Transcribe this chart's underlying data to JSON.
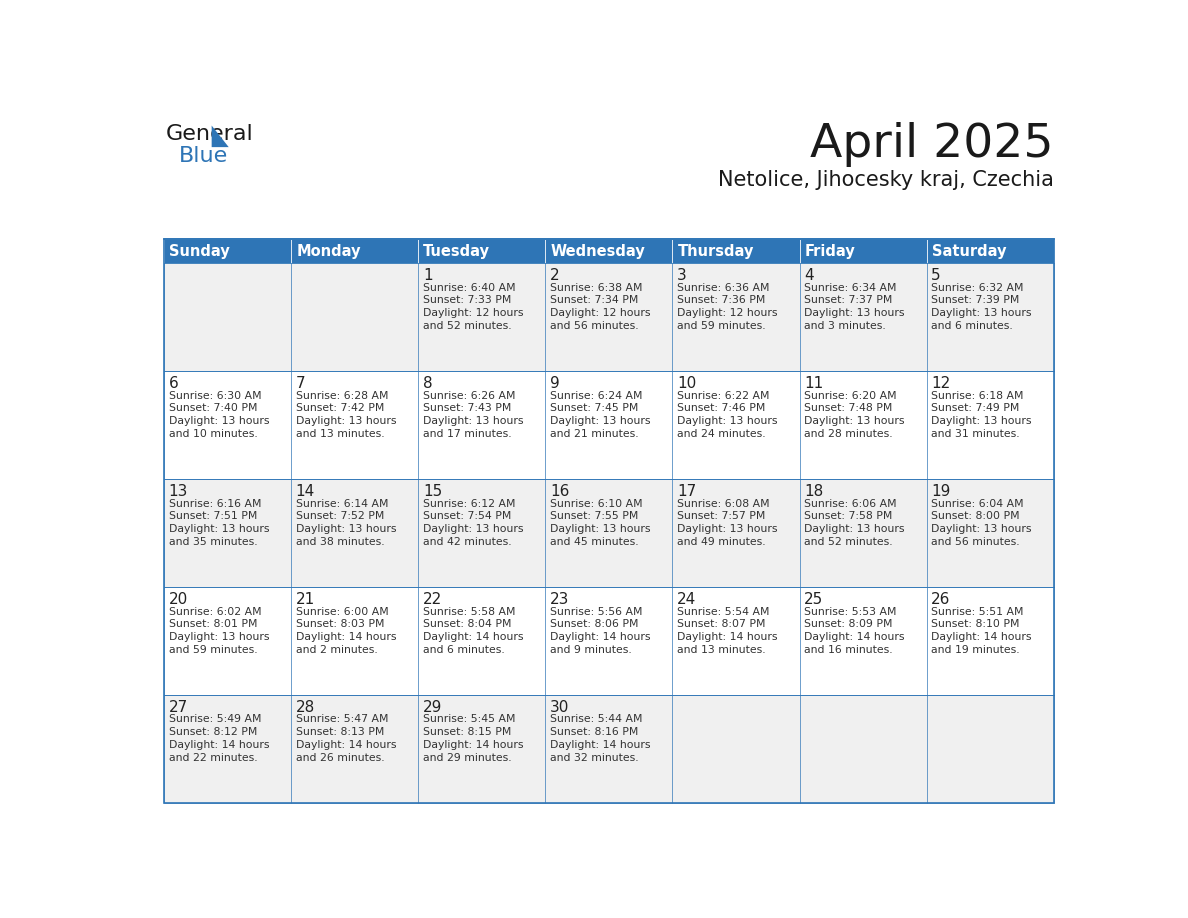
{
  "title": "April 2025",
  "subtitle": "Netolice, Jihocesky kraj, Czechia",
  "header_bg": "#2E75B6",
  "header_text_color": "#FFFFFF",
  "border_color": "#2E75B6",
  "text_color": "#333333",
  "days_of_week": [
    "Sunday",
    "Monday",
    "Tuesday",
    "Wednesday",
    "Thursday",
    "Friday",
    "Saturday"
  ],
  "weeks": [
    [
      {
        "day": "",
        "info": ""
      },
      {
        "day": "",
        "info": ""
      },
      {
        "day": "1",
        "info": "Sunrise: 6:40 AM\nSunset: 7:33 PM\nDaylight: 12 hours\nand 52 minutes."
      },
      {
        "day": "2",
        "info": "Sunrise: 6:38 AM\nSunset: 7:34 PM\nDaylight: 12 hours\nand 56 minutes."
      },
      {
        "day": "3",
        "info": "Sunrise: 6:36 AM\nSunset: 7:36 PM\nDaylight: 12 hours\nand 59 minutes."
      },
      {
        "day": "4",
        "info": "Sunrise: 6:34 AM\nSunset: 7:37 PM\nDaylight: 13 hours\nand 3 minutes."
      },
      {
        "day": "5",
        "info": "Sunrise: 6:32 AM\nSunset: 7:39 PM\nDaylight: 13 hours\nand 6 minutes."
      }
    ],
    [
      {
        "day": "6",
        "info": "Sunrise: 6:30 AM\nSunset: 7:40 PM\nDaylight: 13 hours\nand 10 minutes."
      },
      {
        "day": "7",
        "info": "Sunrise: 6:28 AM\nSunset: 7:42 PM\nDaylight: 13 hours\nand 13 minutes."
      },
      {
        "day": "8",
        "info": "Sunrise: 6:26 AM\nSunset: 7:43 PM\nDaylight: 13 hours\nand 17 minutes."
      },
      {
        "day": "9",
        "info": "Sunrise: 6:24 AM\nSunset: 7:45 PM\nDaylight: 13 hours\nand 21 minutes."
      },
      {
        "day": "10",
        "info": "Sunrise: 6:22 AM\nSunset: 7:46 PM\nDaylight: 13 hours\nand 24 minutes."
      },
      {
        "day": "11",
        "info": "Sunrise: 6:20 AM\nSunset: 7:48 PM\nDaylight: 13 hours\nand 28 minutes."
      },
      {
        "day": "12",
        "info": "Sunrise: 6:18 AM\nSunset: 7:49 PM\nDaylight: 13 hours\nand 31 minutes."
      }
    ],
    [
      {
        "day": "13",
        "info": "Sunrise: 6:16 AM\nSunset: 7:51 PM\nDaylight: 13 hours\nand 35 minutes."
      },
      {
        "day": "14",
        "info": "Sunrise: 6:14 AM\nSunset: 7:52 PM\nDaylight: 13 hours\nand 38 minutes."
      },
      {
        "day": "15",
        "info": "Sunrise: 6:12 AM\nSunset: 7:54 PM\nDaylight: 13 hours\nand 42 minutes."
      },
      {
        "day": "16",
        "info": "Sunrise: 6:10 AM\nSunset: 7:55 PM\nDaylight: 13 hours\nand 45 minutes."
      },
      {
        "day": "17",
        "info": "Sunrise: 6:08 AM\nSunset: 7:57 PM\nDaylight: 13 hours\nand 49 minutes."
      },
      {
        "day": "18",
        "info": "Sunrise: 6:06 AM\nSunset: 7:58 PM\nDaylight: 13 hours\nand 52 minutes."
      },
      {
        "day": "19",
        "info": "Sunrise: 6:04 AM\nSunset: 8:00 PM\nDaylight: 13 hours\nand 56 minutes."
      }
    ],
    [
      {
        "day": "20",
        "info": "Sunrise: 6:02 AM\nSunset: 8:01 PM\nDaylight: 13 hours\nand 59 minutes."
      },
      {
        "day": "21",
        "info": "Sunrise: 6:00 AM\nSunset: 8:03 PM\nDaylight: 14 hours\nand 2 minutes."
      },
      {
        "day": "22",
        "info": "Sunrise: 5:58 AM\nSunset: 8:04 PM\nDaylight: 14 hours\nand 6 minutes."
      },
      {
        "day": "23",
        "info": "Sunrise: 5:56 AM\nSunset: 8:06 PM\nDaylight: 14 hours\nand 9 minutes."
      },
      {
        "day": "24",
        "info": "Sunrise: 5:54 AM\nSunset: 8:07 PM\nDaylight: 14 hours\nand 13 minutes."
      },
      {
        "day": "25",
        "info": "Sunrise: 5:53 AM\nSunset: 8:09 PM\nDaylight: 14 hours\nand 16 minutes."
      },
      {
        "day": "26",
        "info": "Sunrise: 5:51 AM\nSunset: 8:10 PM\nDaylight: 14 hours\nand 19 minutes."
      }
    ],
    [
      {
        "day": "27",
        "info": "Sunrise: 5:49 AM\nSunset: 8:12 PM\nDaylight: 14 hours\nand 22 minutes."
      },
      {
        "day": "28",
        "info": "Sunrise: 5:47 AM\nSunset: 8:13 PM\nDaylight: 14 hours\nand 26 minutes."
      },
      {
        "day": "29",
        "info": "Sunrise: 5:45 AM\nSunset: 8:15 PM\nDaylight: 14 hours\nand 29 minutes."
      },
      {
        "day": "30",
        "info": "Sunrise: 5:44 AM\nSunset: 8:16 PM\nDaylight: 14 hours\nand 32 minutes."
      },
      {
        "day": "",
        "info": ""
      },
      {
        "day": "",
        "info": ""
      },
      {
        "day": "",
        "info": ""
      }
    ]
  ],
  "logo_text1": "General",
  "logo_text2": "Blue",
  "logo_color1": "#1a1a1a",
  "logo_color2": "#2E75B6",
  "tri_color": "#2E75B6"
}
